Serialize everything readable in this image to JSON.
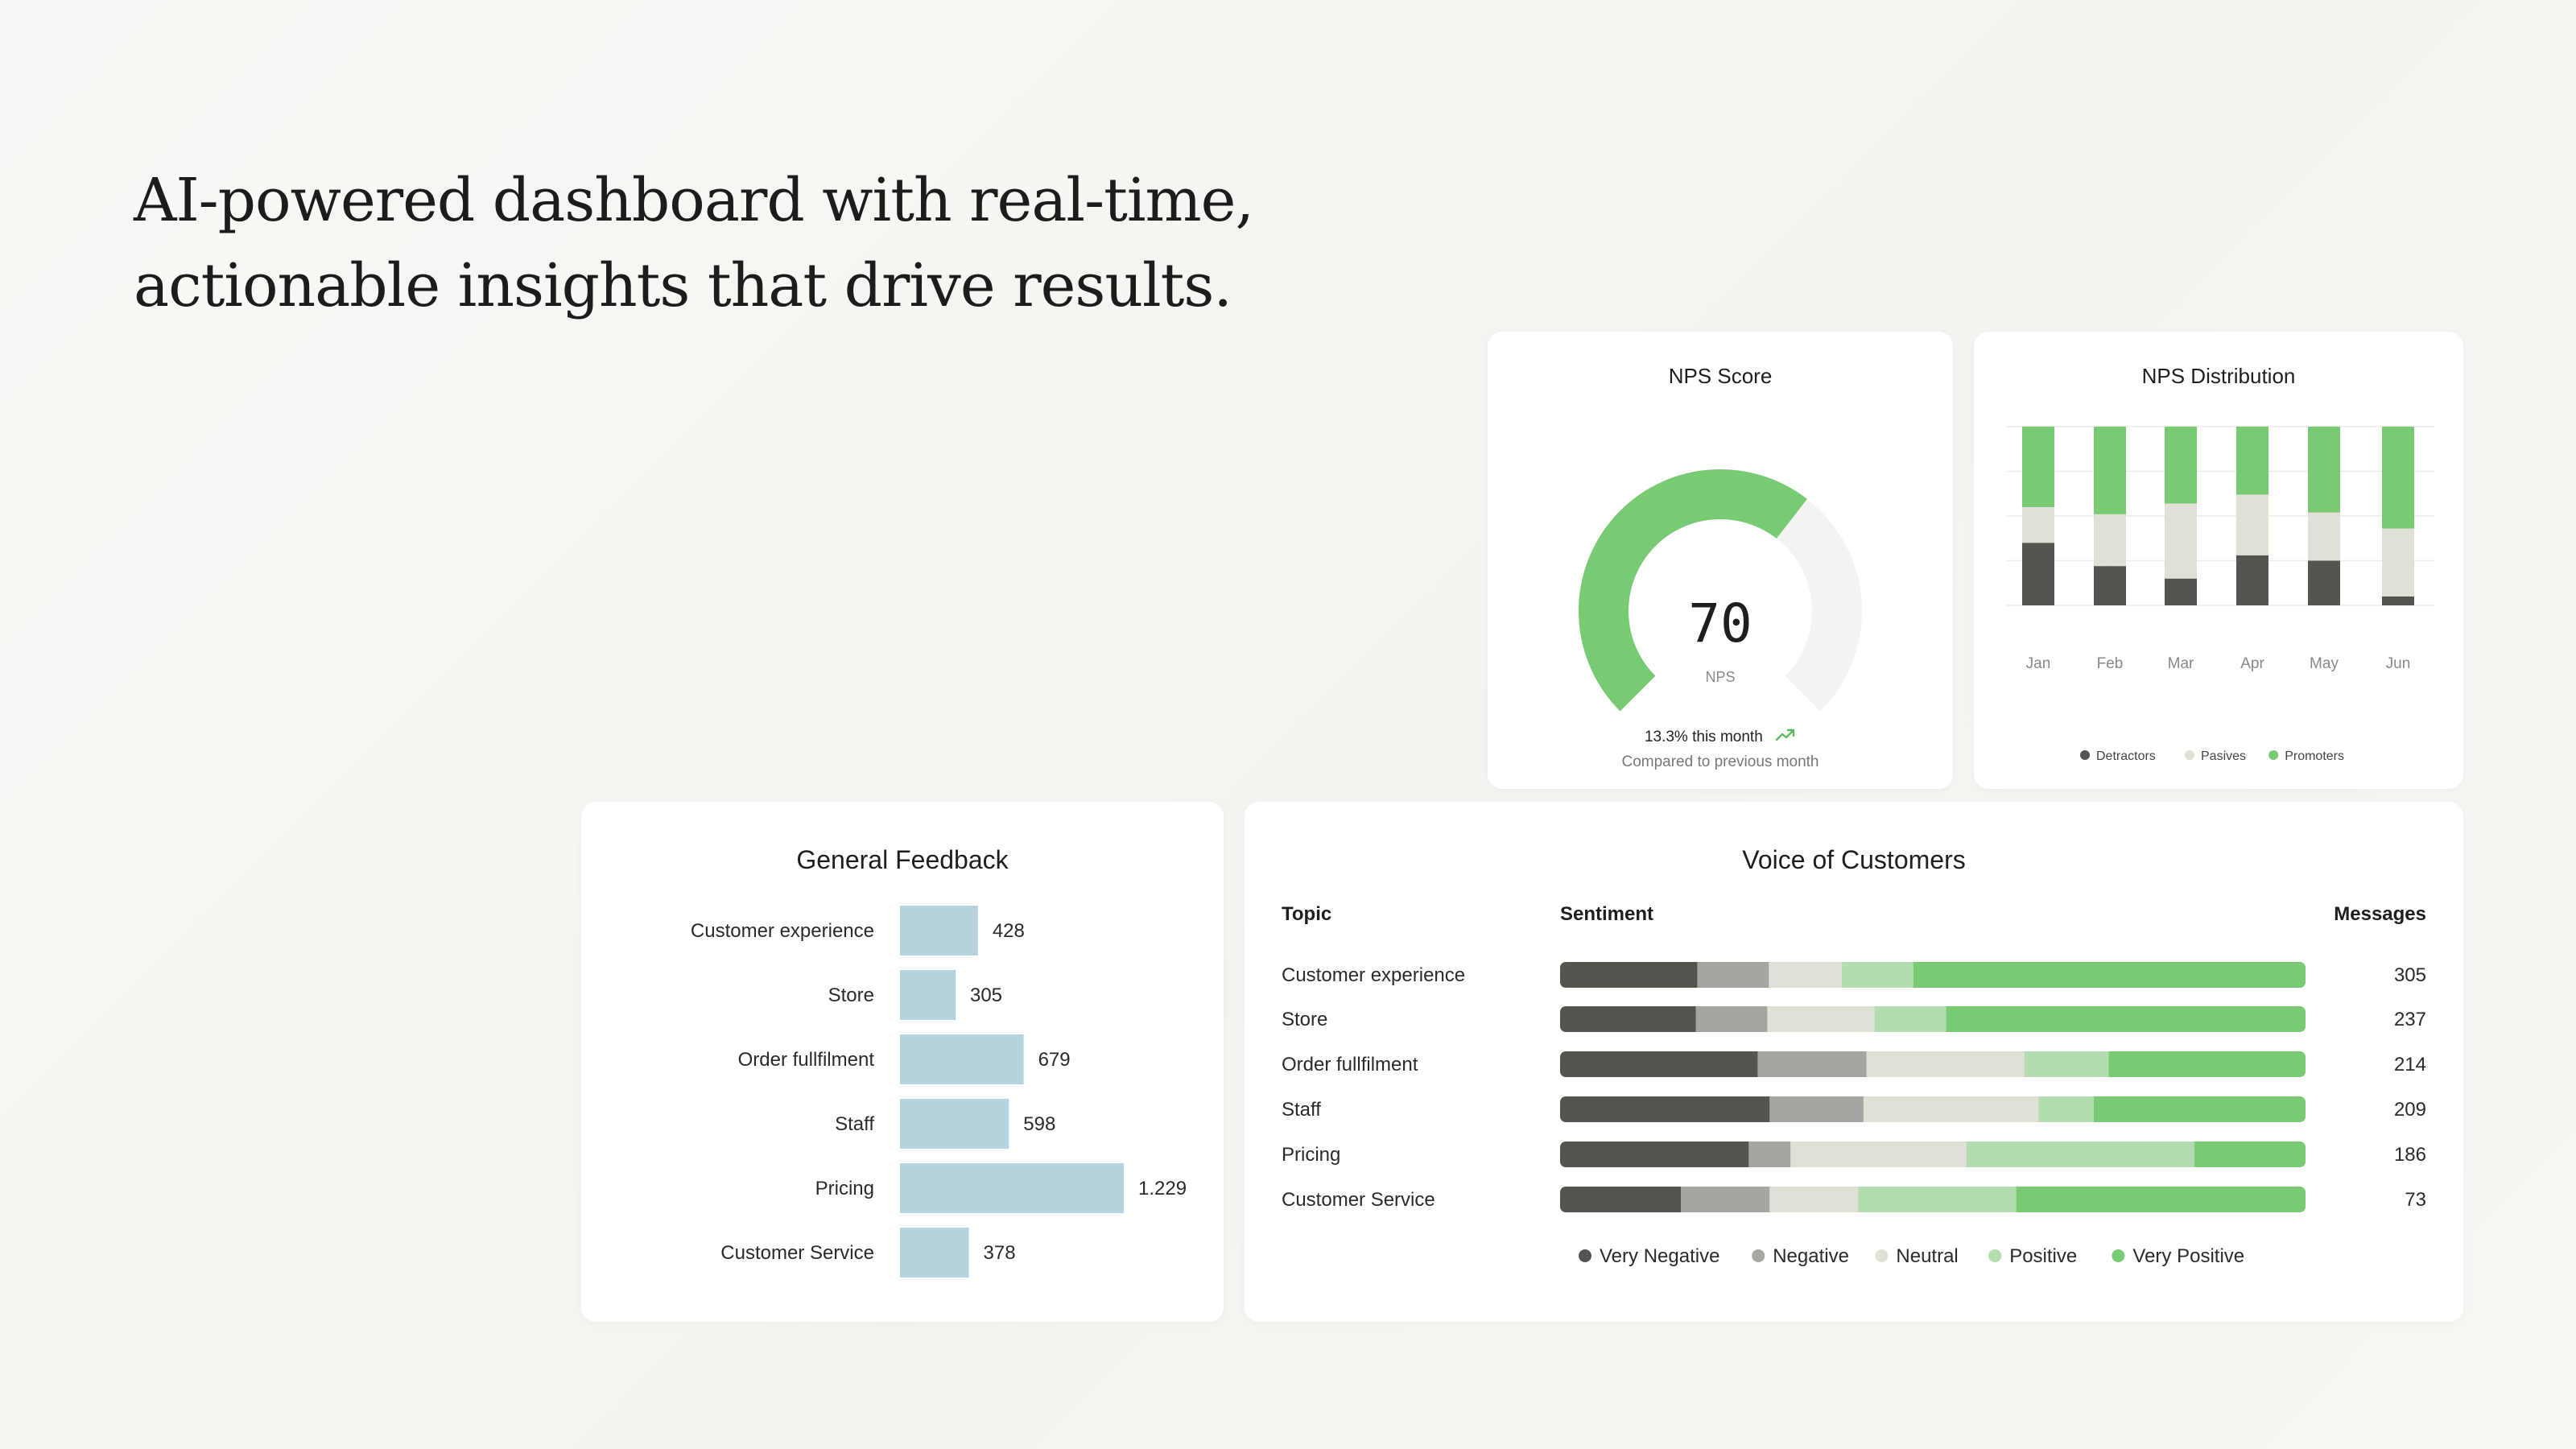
{
  "headline": {
    "line1": "AI-powered dashboard with real-time,",
    "line2": "actionable insights that drive results."
  },
  "colors": {
    "very_negative": "#55554f",
    "negative": "#a6a5a1",
    "neutral": "#e1e0d7",
    "positive": "#b3ddb0",
    "very_positive": "#78ca73",
    "feedback_bar": "#b5d3dc",
    "gauge_track": "#f3f3f2"
  },
  "nps_score": {
    "title": "NPS Score",
    "value": "70",
    "value_label": "NPS",
    "trend_text": "13.3% this month",
    "trend_icon": "trending-up-icon",
    "compare_text": "Compared to previous month",
    "chart_data": {
      "type": "gauge",
      "value": 70,
      "fill_fraction": 0.64
    }
  },
  "nps_distribution": {
    "title": "NPS Distribution",
    "chart_data": {
      "type": "bar",
      "stacked": true,
      "categories": [
        "Jan",
        "Feb",
        "Mar",
        "Apr",
        "May",
        "Jun"
      ],
      "series": [
        {
          "name": "Detractors",
          "values": [
            35,
            22,
            15,
            28,
            25,
            5
          ]
        },
        {
          "name": "Pasives",
          "values": [
            20,
            29,
            42,
            34,
            27,
            38
          ]
        },
        {
          "name": "Promoters",
          "values": [
            45,
            49,
            43,
            38,
            48,
            57
          ]
        }
      ],
      "ylim": [
        0,
        100
      ],
      "grid": true,
      "legend_position": "bottom"
    }
  },
  "general_feedback": {
    "title": "General Feedback",
    "chart_data": {
      "type": "bar",
      "orientation": "horizontal",
      "categories": [
        "Customer experience",
        "Store",
        "Order fullfilment",
        "Staff",
        "Pricing",
        "Customer Service"
      ],
      "values": [
        428,
        305,
        679,
        598,
        1229,
        378
      ],
      "value_labels": [
        "428",
        "305",
        "679",
        "598",
        "1.229",
        "378"
      ]
    }
  },
  "voice_of_customers": {
    "title": "Voice of Customers",
    "col_topic": "Topic",
    "col_sentiment": "Sentiment",
    "col_messages": "Messages",
    "chart_data": {
      "type": "bar",
      "orientation": "horizontal",
      "stacked": true,
      "normalized": true,
      "categories": [
        "Customer experience",
        "Store",
        "Order fullfilment",
        "Staff",
        "Pricing",
        "Customer Service"
      ],
      "messages": [
        305,
        237,
        214,
        209,
        186,
        73
      ],
      "series": [
        {
          "name": "Very Negative",
          "values": [
            18.4,
            18.2,
            26.5,
            28.1,
            25.3,
            16.2
          ]
        },
        {
          "name": "Negative",
          "values": [
            9.6,
            9.6,
            14.6,
            12.6,
            5.6,
            11.9
          ]
        },
        {
          "name": "Neutral",
          "values": [
            9.8,
            14.4,
            21.2,
            23.5,
            23.6,
            11.9
          ]
        },
        {
          "name": "Positive",
          "values": [
            9.6,
            9.6,
            11.3,
            7.4,
            30.6,
            21.2
          ]
        },
        {
          "name": "Very Positive",
          "values": [
            52.6,
            48.2,
            26.4,
            28.4,
            14.9,
            38.8
          ]
        }
      ],
      "legend_position": "bottom"
    }
  }
}
